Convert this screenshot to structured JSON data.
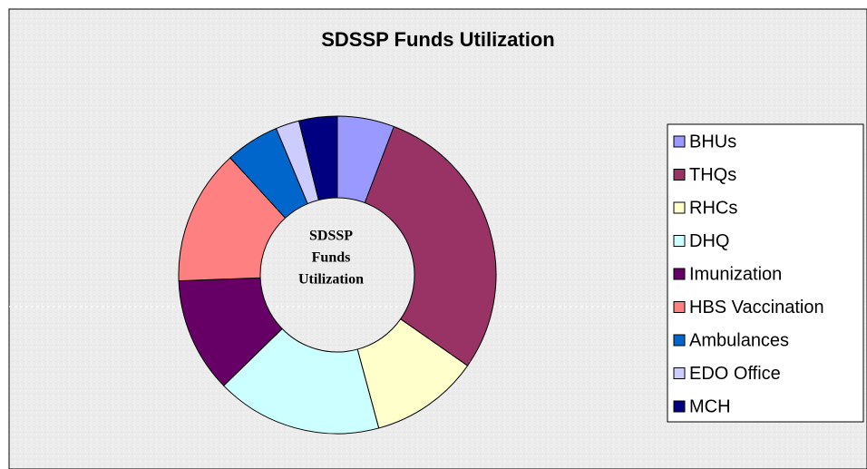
{
  "chart_data": {
    "type": "donut",
    "title": "SDSSP Funds Utilization",
    "center_label": [
      "SDSSP",
      "Funds",
      "Utilization"
    ],
    "categories": [
      "BHUs",
      "THQs",
      "RHCs",
      "DHQ",
      "Imunization",
      "HBS Vaccination",
      "Ambulances",
      "EDO Office",
      "MCH"
    ],
    "values": [
      5.8,
      28.9,
      11.1,
      16.9,
      11.7,
      13.8,
      5.5,
      2.4,
      3.9
    ],
    "colors": [
      "#9999ff",
      "#993366",
      "#ffffcc",
      "#ccffff",
      "#660066",
      "#ff8080",
      "#0066cc",
      "#ccccff",
      "#000080"
    ],
    "legend": "right"
  }
}
